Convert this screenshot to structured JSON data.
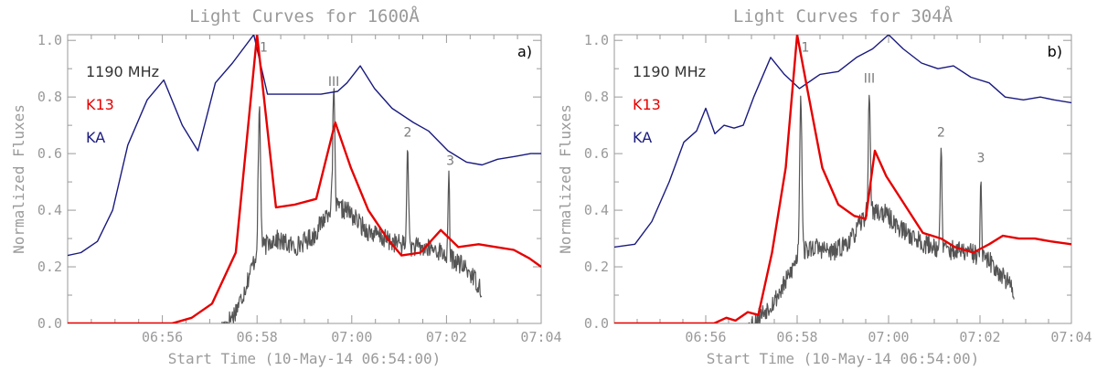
{
  "chart_data": [
    {
      "type": "line",
      "panel_label": "a)",
      "title": "Light Curves for 1600Å",
      "xlabel": "Start Time (10-May-14 06:54:00)",
      "ylabel": "Normalized Fluxes",
      "xlim": [
        0,
        10
      ],
      "ylim": [
        0,
        1.02
      ],
      "xticks": [
        {
          "v": 2,
          "label": "06:56"
        },
        {
          "v": 4,
          "label": "06:58"
        },
        {
          "v": 6,
          "label": "07:00"
        },
        {
          "v": 8,
          "label": "07:02"
        },
        {
          "v": 10,
          "label": "07:04"
        }
      ],
      "yticks": [
        {
          "v": 0,
          "label": "0.0"
        },
        {
          "v": 0.2,
          "label": "0.2"
        },
        {
          "v": 0.4,
          "label": "0.4"
        },
        {
          "v": 0.6,
          "label": "0.6"
        },
        {
          "v": 0.8,
          "label": "0.8"
        },
        {
          "v": 1,
          "label": "1.0"
        }
      ],
      "legend": [
        {
          "label": "1190 MHz",
          "color": "#333333"
        },
        {
          "label": "K13",
          "color": "#e60000"
        },
        {
          "label": "KA",
          "color": "#1a1a80"
        }
      ],
      "series": [
        {
          "name": "KA",
          "color": "#1a1a80",
          "x": [
            0,
            0.28,
            0.63,
            0.95,
            1.27,
            1.68,
            2.03,
            2.42,
            2.75,
            3.12,
            3.48,
            3.93,
            4.22,
            4.58,
            4.95,
            5.35,
            5.7,
            5.9,
            6.18,
            6.48,
            6.85,
            7.3,
            7.62,
            8.03,
            8.42,
            8.75,
            9.08,
            9.45,
            9.78,
            10
          ],
          "y": [
            0.24,
            0.25,
            0.29,
            0.4,
            0.63,
            0.79,
            0.86,
            0.7,
            0.61,
            0.85,
            0.92,
            1.02,
            0.81,
            0.81,
            0.81,
            0.81,
            0.82,
            0.85,
            0.91,
            0.83,
            0.76,
            0.71,
            0.68,
            0.61,
            0.57,
            0.56,
            0.58,
            0.59,
            0.6,
            0.6
          ]
        },
        {
          "name": "K13",
          "color": "#e60000",
          "x": [
            0,
            2.2,
            2.62,
            3.05,
            3.55,
            4.0,
            4.4,
            4.8,
            5.25,
            5.65,
            5.98,
            6.35,
            6.75,
            7.05,
            7.45,
            7.88,
            8.25,
            8.68,
            9.05,
            9.42,
            9.75,
            10
          ],
          "y": [
            0,
            0,
            0.02,
            0.07,
            0.25,
            1.02,
            0.41,
            0.42,
            0.44,
            0.71,
            0.55,
            0.4,
            0.3,
            0.24,
            0.25,
            0.33,
            0.27,
            0.28,
            0.27,
            0.26,
            0.23,
            0.2
          ]
        },
        {
          "name": "1190 MHz",
          "color": "#555555",
          "x_start": 3.25,
          "x_end": 8.75,
          "noise": 0.035,
          "seed": 17,
          "baseline": [
            [
              3.25,
              -0.02
            ],
            [
              3.5,
              0.03
            ],
            [
              3.7,
              0.1
            ],
            [
              3.85,
              0.18
            ],
            [
              4.0,
              0.25
            ],
            [
              4.35,
              0.3
            ],
            [
              4.8,
              0.27
            ],
            [
              5.2,
              0.31
            ],
            [
              5.55,
              0.41
            ],
            [
              5.9,
              0.4
            ],
            [
              6.3,
              0.33
            ],
            [
              6.8,
              0.29
            ],
            [
              7.3,
              0.27
            ],
            [
              7.8,
              0.26
            ],
            [
              8.2,
              0.22
            ],
            [
              8.5,
              0.18
            ],
            [
              8.75,
              0.12
            ]
          ],
          "spikes": [
            [
              4.05,
              0.5,
              0.035
            ],
            [
              5.62,
              0.42,
              0.03
            ],
            [
              7.18,
              0.37,
              0.025
            ],
            [
              8.05,
              0.3,
              0.02
            ]
          ]
        }
      ],
      "annotations": [
        {
          "text": "1",
          "x": 4.14,
          "y": 0.96
        },
        {
          "text": "III",
          "x": 5.62,
          "y": 0.84
        },
        {
          "text": "2",
          "x": 7.18,
          "y": 0.66
        },
        {
          "text": "3",
          "x": 8.08,
          "y": 0.56
        }
      ]
    },
    {
      "type": "line",
      "panel_label": "b)",
      "title": "Light Curves for 304Å",
      "xlabel": "Start Time (10-May-14 06:54:00)",
      "ylabel": "Normalized Fluxes",
      "xlim": [
        0,
        10
      ],
      "ylim": [
        0,
        1.02
      ],
      "xticks": [
        {
          "v": 2,
          "label": "06:56"
        },
        {
          "v": 4,
          "label": "06:58"
        },
        {
          "v": 6,
          "label": "07:00"
        },
        {
          "v": 8,
          "label": "07:02"
        },
        {
          "v": 10,
          "label": "07:04"
        }
      ],
      "yticks": [
        {
          "v": 0,
          "label": "0.0"
        },
        {
          "v": 0.2,
          "label": "0.2"
        },
        {
          "v": 0.4,
          "label": "0.4"
        },
        {
          "v": 0.6,
          "label": "0.6"
        },
        {
          "v": 0.8,
          "label": "0.8"
        },
        {
          "v": 1,
          "label": "1.0"
        }
      ],
      "legend": [
        {
          "label": "1190 MHz",
          "color": "#333333"
        },
        {
          "label": "K13",
          "color": "#e60000"
        },
        {
          "label": "KA",
          "color": "#1a1a80"
        }
      ],
      "series": [
        {
          "name": "KA",
          "color": "#1a1a80",
          "x": [
            0,
            0.45,
            0.82,
            1.2,
            1.52,
            1.8,
            2.0,
            2.2,
            2.4,
            2.62,
            2.82,
            3.05,
            3.42,
            3.72,
            4.05,
            4.5,
            4.9,
            5.3,
            5.65,
            6.0,
            6.32,
            6.72,
            7.08,
            7.42,
            7.8,
            8.2,
            8.55,
            8.95,
            9.32,
            9.62,
            10
          ],
          "y": [
            0.27,
            0.28,
            0.36,
            0.5,
            0.64,
            0.68,
            0.76,
            0.67,
            0.7,
            0.69,
            0.7,
            0.8,
            0.94,
            0.88,
            0.83,
            0.88,
            0.89,
            0.94,
            0.97,
            1.02,
            0.97,
            0.92,
            0.9,
            0.91,
            0.87,
            0.85,
            0.8,
            0.79,
            0.8,
            0.79,
            0.78
          ]
        },
        {
          "name": "K13",
          "color": "#e60000",
          "x": [
            0,
            2.18,
            2.45,
            2.65,
            2.92,
            3.15,
            3.45,
            3.75,
            4.0,
            4.22,
            4.55,
            4.9,
            5.25,
            5.5,
            5.7,
            5.95,
            6.35,
            6.75,
            7.15,
            7.45,
            7.85,
            8.2,
            8.5,
            8.85,
            9.2,
            9.55,
            10
          ],
          "y": [
            0,
            0,
            0.02,
            0.01,
            0.04,
            0.03,
            0.25,
            0.55,
            1.02,
            0.83,
            0.55,
            0.42,
            0.38,
            0.37,
            0.61,
            0.52,
            0.42,
            0.32,
            0.3,
            0.27,
            0.25,
            0.28,
            0.31,
            0.3,
            0.3,
            0.29,
            0.28
          ]
        },
        {
          "name": "1190 MHz",
          "color": "#555555",
          "x_start": 2.9,
          "x_end": 8.75,
          "noise": 0.035,
          "seed": 53,
          "baseline": [
            [
              2.9,
              -0.02
            ],
            [
              3.2,
              0.03
            ],
            [
              3.5,
              0.08
            ],
            [
              3.8,
              0.16
            ],
            [
              4.05,
              0.25
            ],
            [
              4.4,
              0.27
            ],
            [
              4.8,
              0.25
            ],
            [
              5.2,
              0.3
            ],
            [
              5.55,
              0.4
            ],
            [
              5.9,
              0.39
            ],
            [
              6.3,
              0.33
            ],
            [
              6.8,
              0.28
            ],
            [
              7.3,
              0.26
            ],
            [
              7.8,
              0.25
            ],
            [
              8.2,
              0.22
            ],
            [
              8.5,
              0.17
            ],
            [
              8.75,
              0.11
            ]
          ],
          "spikes": [
            [
              4.08,
              0.56,
              0.035
            ],
            [
              5.58,
              0.42,
              0.03
            ],
            [
              7.15,
              0.36,
              0.025
            ],
            [
              8.02,
              0.29,
              0.02
            ]
          ]
        }
      ],
      "annotations": [
        {
          "text": "1",
          "x": 4.18,
          "y": 0.96
        },
        {
          "text": "III",
          "x": 5.58,
          "y": 0.85
        },
        {
          "text": "2",
          "x": 7.15,
          "y": 0.66
        },
        {
          "text": "3",
          "x": 8.02,
          "y": 0.57
        }
      ]
    }
  ]
}
